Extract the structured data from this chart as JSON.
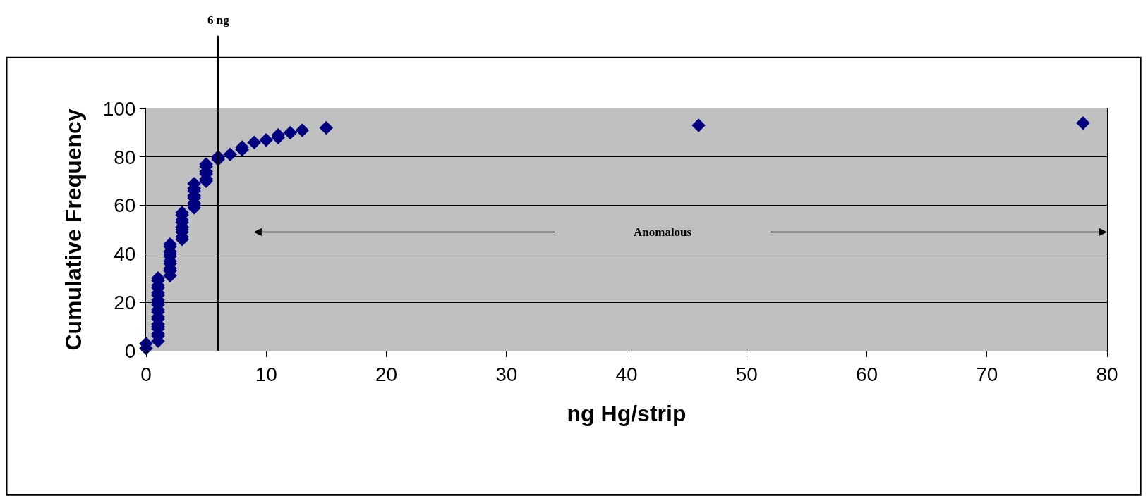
{
  "chart_data": {
    "type": "scatter",
    "xlabel": "ng Hg/strip",
    "ylabel": "Cumulative Frequency",
    "x": [
      0,
      0,
      1,
      1,
      1,
      1,
      1,
      1,
      1,
      1,
      1,
      1,
      1,
      1,
      1,
      1,
      1,
      1,
      1,
      1,
      1,
      2,
      2,
      2,
      2,
      2,
      2,
      2,
      2,
      2,
      2,
      3,
      3,
      3,
      3,
      3,
      3,
      3,
      3,
      3,
      4,
      4,
      4,
      4,
      4,
      4,
      4,
      4,
      5,
      5,
      5,
      5,
      5,
      5,
      6,
      6,
      7,
      8,
      8,
      9,
      10,
      11,
      11,
      12,
      13,
      15,
      46,
      78
    ],
    "series": [
      {
        "color": "#000080",
        "values": [
          1,
          3,
          4,
          6,
          7,
          9,
          10,
          11,
          13,
          14,
          16,
          17,
          19,
          20,
          21,
          23,
          24,
          26,
          27,
          29,
          30,
          31,
          33,
          34,
          36,
          37,
          39,
          40,
          41,
          43,
          44,
          46,
          47,
          49,
          50,
          51,
          53,
          54,
          56,
          57,
          59,
          60,
          61,
          63,
          64,
          66,
          67,
          69,
          70,
          71,
          73,
          74,
          76,
          77,
          79,
          80,
          81,
          83,
          84,
          86,
          87,
          88,
          89,
          90,
          91,
          92,
          93,
          94
        ]
      }
    ],
    "xlim": [
      0,
      80
    ],
    "xticks": [
      0,
      10,
      20,
      30,
      40,
      50,
      60,
      70,
      80
    ],
    "ylim": [
      0,
      100
    ],
    "yticks": [
      0,
      20,
      40,
      60,
      80,
      100
    ],
    "ref_lines": [
      {
        "axis": "x",
        "value": 6,
        "label": "6 ng",
        "color": "#000000"
      }
    ],
    "annotations": [
      "Anomalous"
    ],
    "grid": "y",
    "legend": false,
    "marker": "diamond"
  }
}
